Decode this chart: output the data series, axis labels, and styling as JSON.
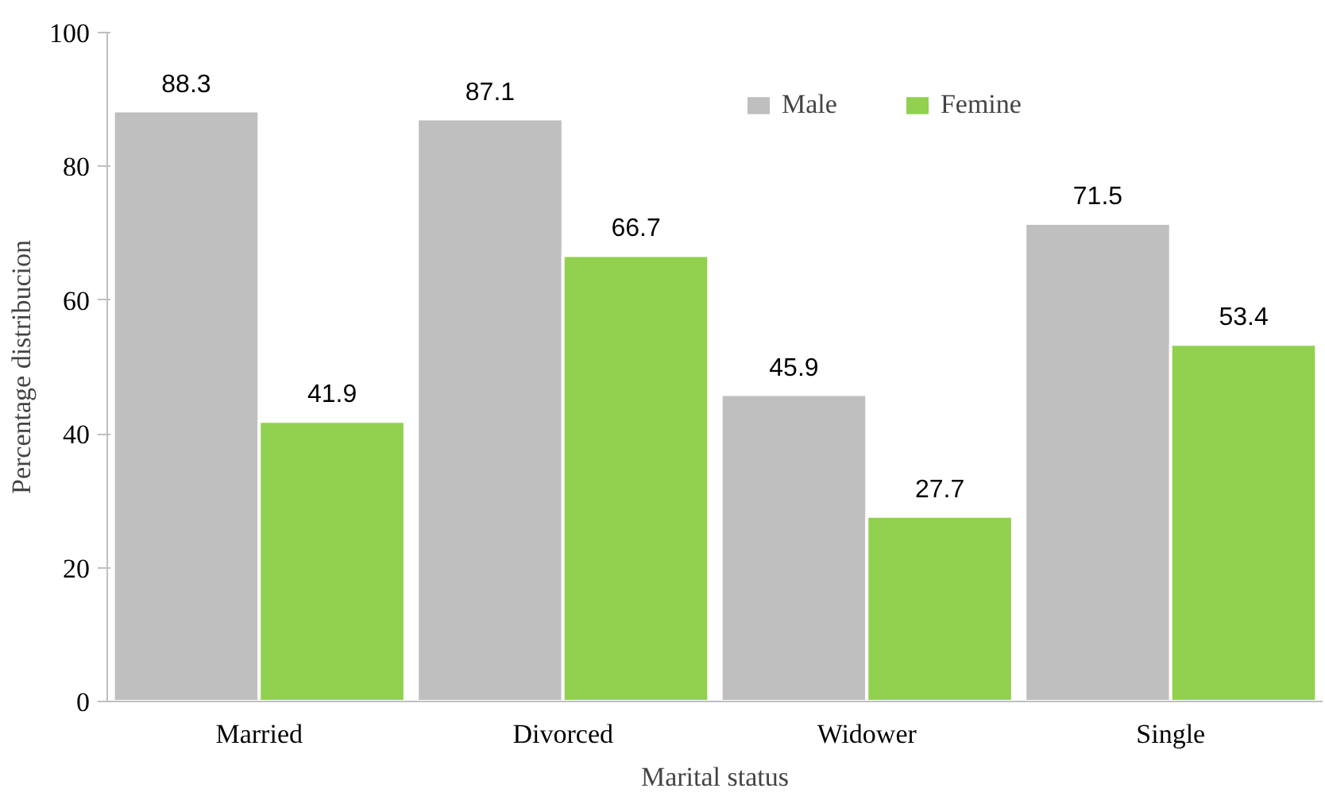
{
  "chart_data": {
    "type": "bar",
    "xlabel": "Marital status",
    "ylabel": "Percentage distribucion",
    "categories": [
      "Married",
      "Divorced",
      "Widower",
      "Single"
    ],
    "series": [
      {
        "name": "Male",
        "color": "#bfbfbf",
        "values": [
          88.3,
          87.1,
          45.9,
          71.5
        ]
      },
      {
        "name": "Femine",
        "color": "#92d050",
        "values": [
          41.9,
          66.7,
          27.7,
          53.4
        ]
      }
    ],
    "ylim": [
      0,
      100
    ],
    "yticks": [
      0,
      20,
      40,
      60,
      80,
      100
    ],
    "grid": false,
    "legend": "top right",
    "data_labels": true
  }
}
